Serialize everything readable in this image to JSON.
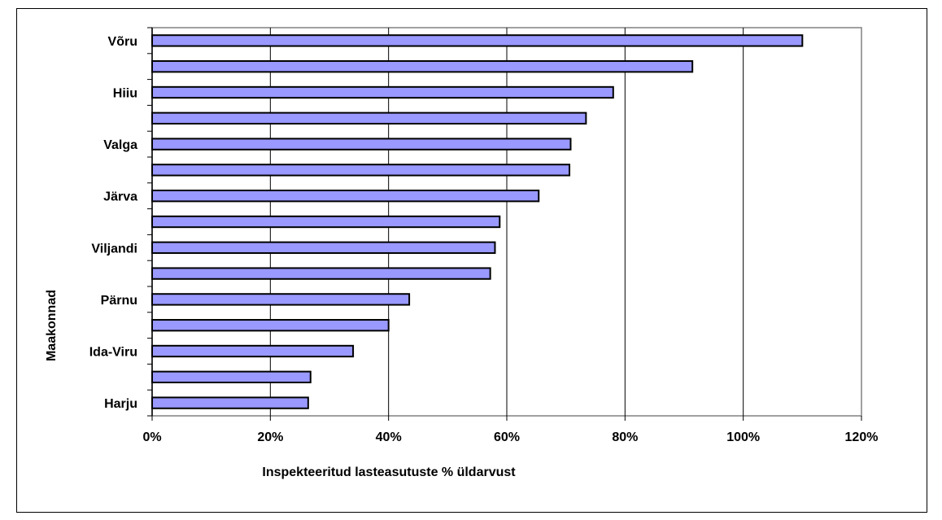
{
  "chart_data": {
    "type": "bar",
    "orientation": "horizontal",
    "categories": [
      "Harju",
      "",
      "Ida-Viru",
      "",
      "Pärnu",
      "",
      "Viljandi",
      "",
      "Järva",
      "",
      "Valga",
      "",
      "Hiiu",
      "",
      "Võru"
    ],
    "values": [
      0.264,
      0.268,
      0.34,
      0.4,
      0.435,
      0.572,
      0.58,
      0.588,
      0.654,
      0.706,
      0.708,
      0.734,
      0.78,
      0.914,
      1.1
    ],
    "xlabel": "Inspekteeritud lasteasutuste % üldarvust",
    "ylabel": "Maakonnad",
    "xlim": [
      0,
      1.2
    ],
    "xticks": [
      "0%",
      "20%",
      "40%",
      "60%",
      "80%",
      "100%",
      "120%"
    ],
    "grid": "vertical",
    "bar_color": "#9999ff",
    "bar_edge_color": "#000000",
    "plot_border_color": "#808080"
  }
}
